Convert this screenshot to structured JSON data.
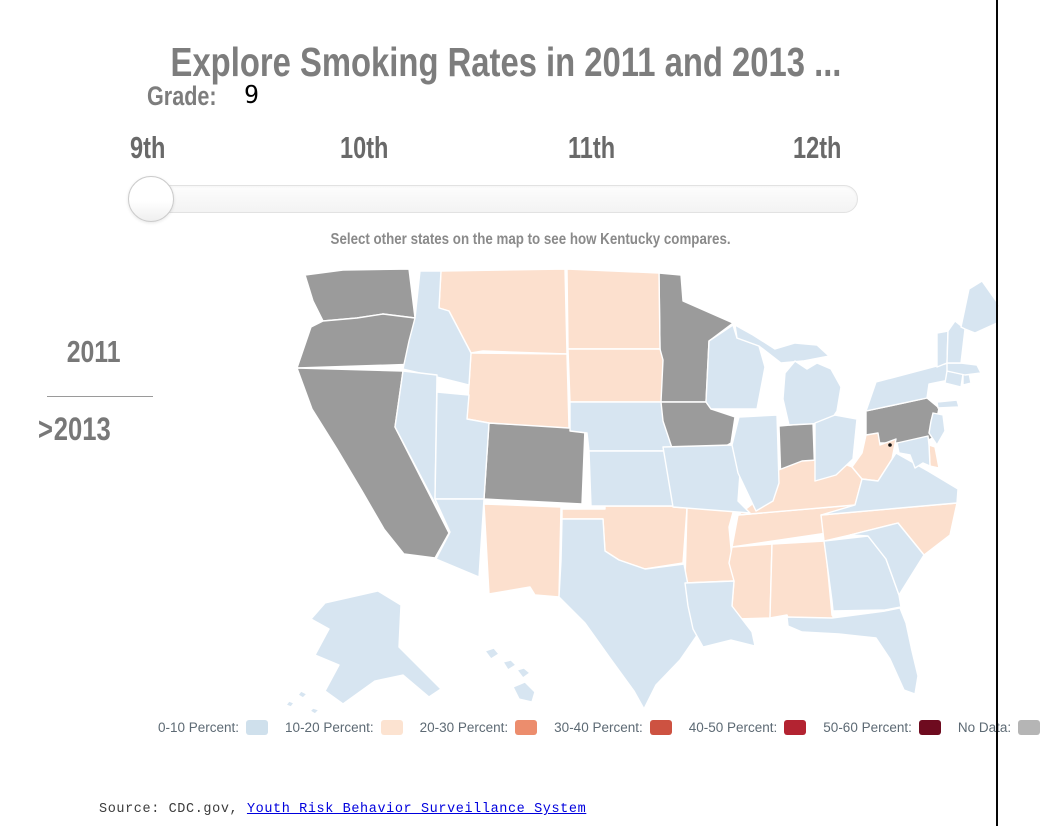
{
  "title": "Explore Smoking Rates in 2011 and 2013 ...",
  "grade": {
    "label": "Grade:",
    "value": "9"
  },
  "slider": {
    "labels": [
      "9th",
      "10th",
      "11th",
      "12th"
    ],
    "selected": "9th"
  },
  "note": "Select other states on the map to see how Kentucky compares.",
  "year_toggle": {
    "marker": ">",
    "items": [
      {
        "label": "2011",
        "selected": false
      },
      {
        "label": "2013",
        "selected": true
      }
    ]
  },
  "legend": {
    "items": [
      {
        "label": "0-10 Percent:",
        "color": "#cfe0ec"
      },
      {
        "label": "10-20 Percent:",
        "color": "#fce3d1"
      },
      {
        "label": "20-30 Percent:",
        "color": "#ec8d6d"
      },
      {
        "label": "30-40 Percent:",
        "color": "#cd5241"
      },
      {
        "label": "40-50 Percent:",
        "color": "#b32331"
      },
      {
        "label": "50-60 Percent:",
        "color": "#6e0b1f"
      },
      {
        "label": "No Data:",
        "color": "#b5b5b5"
      }
    ]
  },
  "map": {
    "colors": {
      "b0_10": "#d7e5f1",
      "b10_20": "#fce0ce",
      "no_data": "#9b9b9b"
    },
    "stroke": "#ffffff",
    "dc_marker_color": "#111111",
    "states": [
      {
        "id": "WA",
        "category": "no_data"
      },
      {
        "id": "OR",
        "category": "no_data"
      },
      {
        "id": "CA",
        "category": "no_data"
      },
      {
        "id": "MN",
        "category": "no_data"
      },
      {
        "id": "IA",
        "category": "no_data"
      },
      {
        "id": "CO",
        "category": "no_data"
      },
      {
        "id": "IN",
        "category": "no_data"
      },
      {
        "id": "PA",
        "category": "no_data"
      },
      {
        "id": "MT",
        "category": "b10_20"
      },
      {
        "id": "ND",
        "category": "b10_20"
      },
      {
        "id": "SD",
        "category": "b10_20"
      },
      {
        "id": "WY",
        "category": "b10_20"
      },
      {
        "id": "NM",
        "category": "b10_20"
      },
      {
        "id": "OK",
        "category": "b10_20"
      },
      {
        "id": "AR",
        "category": "b10_20"
      },
      {
        "id": "MS",
        "category": "b10_20"
      },
      {
        "id": "AL",
        "category": "b10_20"
      },
      {
        "id": "TN",
        "category": "b10_20"
      },
      {
        "id": "KY",
        "category": "b10_20"
      },
      {
        "id": "WV",
        "category": "b10_20"
      },
      {
        "id": "NC",
        "category": "b10_20"
      },
      {
        "id": "DE",
        "category": "b10_20"
      },
      {
        "id": "ID",
        "category": "b0_10"
      },
      {
        "id": "NV",
        "category": "b0_10"
      },
      {
        "id": "UT",
        "category": "b0_10"
      },
      {
        "id": "AZ",
        "category": "b0_10"
      },
      {
        "id": "NE",
        "category": "b0_10"
      },
      {
        "id": "KS",
        "category": "b0_10"
      },
      {
        "id": "TX",
        "category": "b0_10"
      },
      {
        "id": "LA",
        "category": "b0_10"
      },
      {
        "id": "MO",
        "category": "b0_10"
      },
      {
        "id": "IL",
        "category": "b0_10"
      },
      {
        "id": "WI",
        "category": "b0_10"
      },
      {
        "id": "MI",
        "category": "b0_10"
      },
      {
        "id": "OH",
        "category": "b0_10"
      },
      {
        "id": "GA",
        "category": "b0_10"
      },
      {
        "id": "SC",
        "category": "b0_10"
      },
      {
        "id": "FL",
        "category": "b0_10"
      },
      {
        "id": "VA",
        "category": "b0_10"
      },
      {
        "id": "MD",
        "category": "b0_10"
      },
      {
        "id": "NJ",
        "category": "b0_10"
      },
      {
        "id": "NY",
        "category": "b0_10"
      },
      {
        "id": "CT",
        "category": "b0_10"
      },
      {
        "id": "RI",
        "category": "b0_10"
      },
      {
        "id": "MA",
        "category": "b0_10"
      },
      {
        "id": "VT",
        "category": "b0_10"
      },
      {
        "id": "NH",
        "category": "b0_10"
      },
      {
        "id": "ME",
        "category": "b0_10"
      },
      {
        "id": "AK",
        "category": "b0_10"
      },
      {
        "id": "HI",
        "category": "b0_10"
      }
    ]
  },
  "source": {
    "prefix": "Source: CDC.gov, ",
    "link": "Youth Risk Behavior Surveillance System"
  },
  "chart_data": {
    "type": "heatmap",
    "variant": "us_choropleth",
    "title": "Explore Smoking Rates in 2011 and 2013 ...",
    "selected_grade": "9",
    "selected_year": "2013",
    "grades_available": [
      "9th",
      "10th",
      "11th",
      "12th"
    ],
    "years_available": [
      "2011",
      "2013"
    ],
    "bins": [
      "0-10 Percent",
      "10-20 Percent",
      "20-30 Percent",
      "30-40 Percent",
      "40-50 Percent",
      "50-60 Percent",
      "No Data"
    ],
    "legend_position": "bottom",
    "state_bins": {
      "0-10 Percent": [
        "ID",
        "NV",
        "UT",
        "AZ",
        "NE",
        "KS",
        "TX",
        "LA",
        "MO",
        "IL",
        "WI",
        "MI",
        "OH",
        "GA",
        "SC",
        "FL",
        "VA",
        "MD",
        "NJ",
        "NY",
        "CT",
        "RI",
        "MA",
        "VT",
        "NH",
        "ME",
        "AK",
        "HI"
      ],
      "10-20 Percent": [
        "MT",
        "ND",
        "SD",
        "WY",
        "NM",
        "OK",
        "AR",
        "MS",
        "AL",
        "TN",
        "KY",
        "WV",
        "NC",
        "DE"
      ],
      "20-30 Percent": [],
      "30-40 Percent": [],
      "40-50 Percent": [],
      "50-60 Percent": [],
      "No Data": [
        "WA",
        "OR",
        "CA",
        "MN",
        "IA",
        "CO",
        "IN",
        "PA"
      ]
    }
  }
}
